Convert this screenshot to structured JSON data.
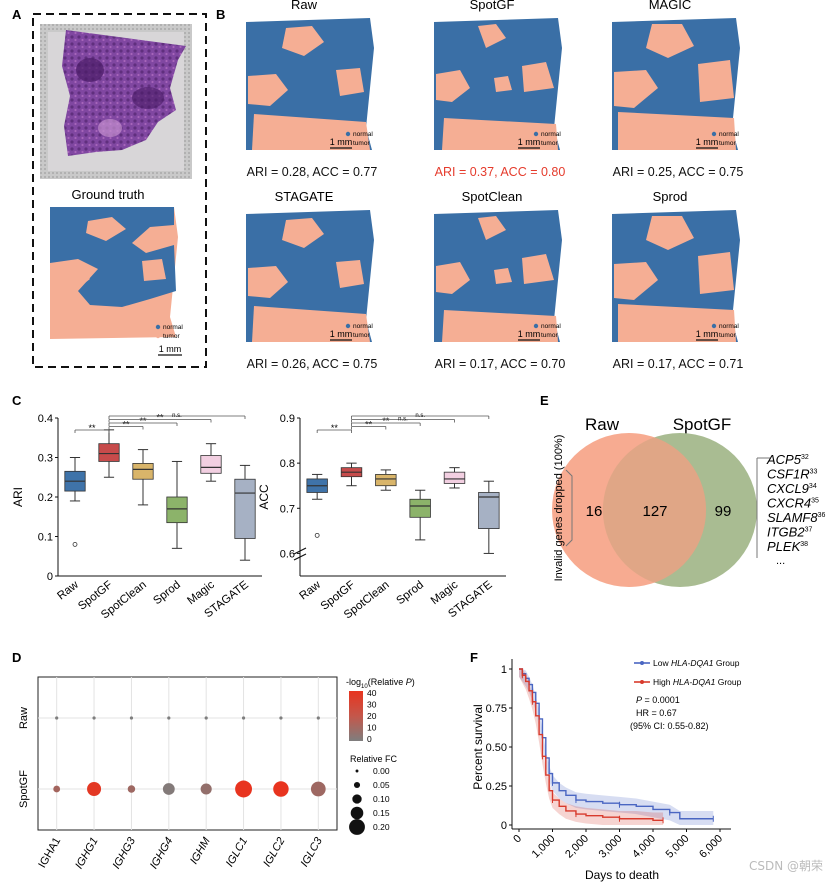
{
  "panel_labels": [
    "A",
    "B",
    "C",
    "D",
    "E",
    "F"
  ],
  "colors": {
    "normal": "#3A6FA6",
    "tumor": "#F5AE94",
    "highlight": "#E53B2C",
    "venn_raw": "#F6A488",
    "venn_spotgf": "#A9BC92",
    "box_raw": "#3F73A9",
    "box_spotgf": "#C74B4B",
    "box_spotclean": "#D9B56A",
    "box_sprod": "#8CB36A",
    "box_magic": "#F2CFE1",
    "box_stagate": "#A6B1C4",
    "km_low": "#4A66C2",
    "km_high": "#D83A2C"
  },
  "panel_a": {
    "gt_title": "Ground truth",
    "legend": [
      "normal",
      "tumor"
    ],
    "scalebar": "1 mm"
  },
  "panel_b": {
    "legend": [
      "normal",
      "tumor"
    ],
    "scalebar": "1 mm",
    "maps": [
      {
        "title": "Raw",
        "metrics": "ARI = 0.28, ACC =  0.77",
        "ari": 0.28,
        "acc": 0.77,
        "highlight": false
      },
      {
        "title": "SpotGF",
        "metrics": "ARI = 0.37, ACC =  0.80",
        "ari": 0.37,
        "acc": 0.8,
        "highlight": true
      },
      {
        "title": "MAGIC",
        "metrics": "ARI = 0.25, ACC =  0.75",
        "ari": 0.25,
        "acc": 0.75,
        "highlight": false
      },
      {
        "title": "STAGATE",
        "metrics": "ARI = 0.26, ACC =  0.75",
        "ari": 0.26,
        "acc": 0.75,
        "highlight": false
      },
      {
        "title": "SpotClean",
        "metrics": "ARI = 0.17, ACC = 0.70",
        "ari": 0.17,
        "acc": 0.7,
        "highlight": false
      },
      {
        "title": "Sprod",
        "metrics": "ARI = 0.17, ACC =  0.71",
        "ari": 0.17,
        "acc": 0.71,
        "highlight": false
      }
    ]
  },
  "chart_data": [
    {
      "panel": "C",
      "type": "box",
      "ylabel": "ARI",
      "ylim": [
        0,
        0.4
      ],
      "yticks": [
        "0",
        "0.1",
        "0.2",
        "0.3",
        "0.4"
      ],
      "categories": [
        "Raw",
        "SpotGF",
        "SpotClean",
        "Sprod",
        "Magic",
        "STAGATE"
      ],
      "boxes": [
        {
          "min": 0.19,
          "q1": 0.215,
          "median": 0.24,
          "q3": 0.265,
          "max": 0.3,
          "outliers": [
            0.08
          ]
        },
        {
          "min": 0.25,
          "q1": 0.29,
          "median": 0.31,
          "q3": 0.335,
          "max": 0.37,
          "outliers": []
        },
        {
          "min": 0.18,
          "q1": 0.245,
          "median": 0.27,
          "q3": 0.285,
          "max": 0.32,
          "outliers": []
        },
        {
          "min": 0.07,
          "q1": 0.135,
          "median": 0.17,
          "q3": 0.2,
          "max": 0.29,
          "outliers": []
        },
        {
          "min": 0.24,
          "q1": 0.26,
          "median": 0.275,
          "q3": 0.305,
          "max": 0.335,
          "outliers": []
        },
        {
          "min": 0.04,
          "q1": 0.095,
          "median": 0.21,
          "q3": 0.245,
          "max": 0.28,
          "outliers": []
        }
      ],
      "significance": [
        "**",
        "**",
        "**",
        "**",
        "n.s."
      ]
    },
    {
      "panel": "C",
      "type": "box",
      "ylabel": "ACC",
      "ylim": [
        0.55,
        0.9
      ],
      "yticks": [
        "0.6",
        "0.7",
        "0.8",
        "0.9"
      ],
      "axis_break": true,
      "categories": [
        "Raw",
        "SpotGF",
        "SpotClean",
        "Sprod",
        "Magic",
        "STAGATE"
      ],
      "boxes": [
        {
          "min": 0.72,
          "q1": 0.735,
          "median": 0.75,
          "q3": 0.765,
          "max": 0.775,
          "outliers": [
            0.64
          ]
        },
        {
          "min": 0.75,
          "q1": 0.77,
          "median": 0.78,
          "q3": 0.79,
          "max": 0.8,
          "outliers": []
        },
        {
          "min": 0.74,
          "q1": 0.75,
          "median": 0.765,
          "q3": 0.775,
          "max": 0.785,
          "outliers": []
        },
        {
          "min": 0.63,
          "q1": 0.68,
          "median": 0.705,
          "q3": 0.72,
          "max": 0.74,
          "outliers": []
        },
        {
          "min": 0.745,
          "q1": 0.755,
          "median": 0.765,
          "q3": 0.78,
          "max": 0.79,
          "outliers": []
        },
        {
          "min": 0.6,
          "q1": 0.655,
          "median": 0.725,
          "q3": 0.735,
          "max": 0.76,
          "outliers": []
        }
      ],
      "significance": [
        "**",
        "**",
        "**",
        "n.s.",
        "n.s."
      ]
    },
    {
      "panel": "D",
      "type": "scatter",
      "ylabel_rows": [
        "Raw",
        "SpotGF"
      ],
      "categories": [
        "IGHA1",
        "IGHG1",
        "IGHG3",
        "IGHG4",
        "IGHM",
        "IGLC1",
        "IGLC2",
        "IGLC3"
      ],
      "italic_labels": [
        false,
        true,
        true,
        true,
        true,
        true,
        true,
        true
      ],
      "color_legend_title": "-log10(Relative P)",
      "color_legend_prefix": "-log",
      "color_legend_sub": "10",
      "color_legend_suffix": "(Relative ",
      "color_legend_p": "P",
      "color_legend_close": ")",
      "color_ticks": [
        "40",
        "30",
        "20",
        "10",
        "0"
      ],
      "size_legend_title": "Relative FC",
      "size_ticks": [
        "0.00",
        "0.05",
        "0.10",
        "0.15",
        "0.20"
      ],
      "raw": {
        "fc": [
          0,
          0,
          0,
          0,
          0,
          0,
          0,
          0
        ],
        "neglogp": [
          0,
          0,
          0,
          0,
          0,
          0,
          0,
          0
        ]
      },
      "spotgf": {
        "fc": [
          0.05,
          0.15,
          0.06,
          0.12,
          0.11,
          0.19,
          0.17,
          0.16
        ],
        "neglogp": [
          14,
          38,
          12,
          2,
          8,
          40,
          40,
          12
        ]
      }
    },
    {
      "panel": "E",
      "type": "venn",
      "sets": [
        "Raw",
        "SpotGF"
      ],
      "only_raw": 16,
      "both": 127,
      "only_spotgf": 99,
      "side_label": "Invalid genes dropped (100%)",
      "genes": [
        {
          "name": "ACP5",
          "rank": "32"
        },
        {
          "name": "CSF1R",
          "rank": "33"
        },
        {
          "name": "CXCL9",
          "rank": "34"
        },
        {
          "name": "CXCR4",
          "rank": "35"
        },
        {
          "name": "SLAMF8",
          "rank": "36"
        },
        {
          "name": "ITGB2",
          "rank": "37"
        },
        {
          "name": "PLEK",
          "rank": "38"
        }
      ],
      "ellipsis": "..."
    },
    {
      "panel": "F",
      "type": "line",
      "xlabel": "Days to death",
      "ylabel": "Percent survival",
      "xlim": [
        0,
        6000
      ],
      "ylim": [
        0,
        1
      ],
      "xticks": [
        "0",
        "1,000",
        "2,000",
        "3,000",
        "4,000",
        "5,000",
        "6,000"
      ],
      "yticks": [
        "0",
        "0.25",
        "0.50",
        "0.75",
        "1"
      ],
      "legend_low_pre": "Low ",
      "legend_low_gene": "HLA-DQA1",
      "legend_low_post": " Group",
      "legend_high_pre": "High ",
      "legend_high_gene": "HLA-DQA1",
      "legend_high_post": " Group",
      "stats_p_label": "P",
      "stats_p_value": " = 0.0001",
      "stats_hr": "HR = 0.67",
      "stats_ci": "(95% CI: 0.55-0.82)",
      "series": [
        {
          "name": "Low HLA-DQA1 Group",
          "x": [
            0,
            100,
            200,
            300,
            400,
            500,
            600,
            700,
            800,
            900,
            1000,
            1200,
            1400,
            1700,
            2000,
            2500,
            3000,
            3500,
            4000,
            4500,
            4800,
            5500,
            5800
          ],
          "y": [
            1.0,
            0.97,
            0.94,
            0.9,
            0.85,
            0.78,
            0.68,
            0.56,
            0.43,
            0.33,
            0.27,
            0.22,
            0.19,
            0.16,
            0.15,
            0.14,
            0.13,
            0.12,
            0.1,
            0.08,
            0.04,
            0.04,
            0.04
          ]
        },
        {
          "name": "High HLA-DQA1 Group",
          "x": [
            0,
            100,
            200,
            300,
            400,
            500,
            600,
            700,
            800,
            900,
            1000,
            1200,
            1400,
            1700,
            2000,
            2500,
            3000,
            3500,
            4000,
            4300
          ],
          "y": [
            1.0,
            0.96,
            0.92,
            0.86,
            0.79,
            0.7,
            0.58,
            0.44,
            0.32,
            0.22,
            0.16,
            0.12,
            0.09,
            0.07,
            0.06,
            0.05,
            0.04,
            0.04,
            0.03,
            0.03
          ]
        }
      ]
    }
  ],
  "watermark": "CSDN @朝荣"
}
